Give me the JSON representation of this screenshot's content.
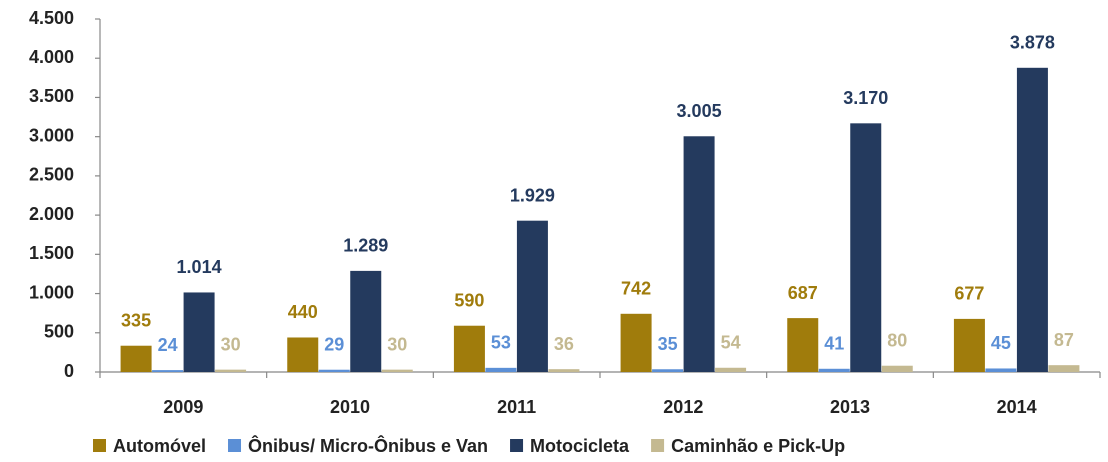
{
  "chart_data": {
    "type": "bar",
    "categories": [
      "2009",
      "2010",
      "2011",
      "2012",
      "2013",
      "2014"
    ],
    "series": [
      {
        "name": "Automóvel",
        "color": "#a07c0c",
        "values": [
          335,
          440,
          590,
          742,
          687,
          677
        ]
      },
      {
        "name": "Ônibus/ Micro-Ônibus e Van",
        "color": "#5b8fd6",
        "values": [
          24,
          29,
          53,
          35,
          41,
          45
        ]
      },
      {
        "name": "Motocicleta",
        "color": "#243a5e",
        "values": [
          1014,
          1289,
          1929,
          3005,
          3170,
          3878
        ],
        "value_labels": [
          "1.014",
          "1.289",
          "1.929",
          "3.005",
          "3.170",
          "3.878"
        ]
      },
      {
        "name": "Caminhão e Pick-Up",
        "color": "#c4b991",
        "values": [
          30,
          30,
          36,
          54,
          80,
          87
        ]
      }
    ],
    "ylim": [
      0,
      4500
    ],
    "yticks": [
      0,
      500,
      {
        "value": 1000,
        "label": "1.000"
      },
      {
        "value": 1500,
        "label": "1.500"
      },
      {
        "value": 2000,
        "label": "2.000"
      },
      {
        "value": 2500,
        "label": "2.500"
      },
      {
        "value": 3000,
        "label": "3.000"
      },
      {
        "value": 3500,
        "label": "3.500"
      },
      {
        "value": 4000,
        "label": "4.000"
      },
      {
        "value": 4500,
        "label": "4.500"
      }
    ],
    "legend": "bottom"
  }
}
